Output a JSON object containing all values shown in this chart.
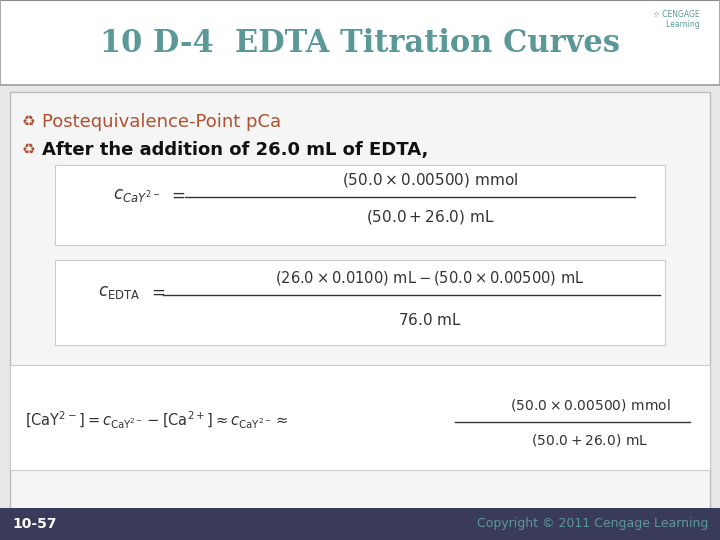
{
  "title": "10 D-4  EDTA Titration Curves",
  "title_color": "#5b9898",
  "title_fontsize": 22,
  "bg_color": "#e8e8e8",
  "header_bg": "#ffffff",
  "bullet_color": "#b05030",
  "bullet1": "Postequivalence-Point pCa",
  "bullet1_color": "#b05030",
  "bullet2": "After the addition of 26.0 mL of EDTA,",
  "bullet2_color": "#111111",
  "footer_left": "10-57",
  "footer_right": "Copyright © 2011 Cengage Learning",
  "footer_bg": "#3a3a5a",
  "footer_text_color": "#5b9898",
  "footer_left_color": "#ffffff"
}
